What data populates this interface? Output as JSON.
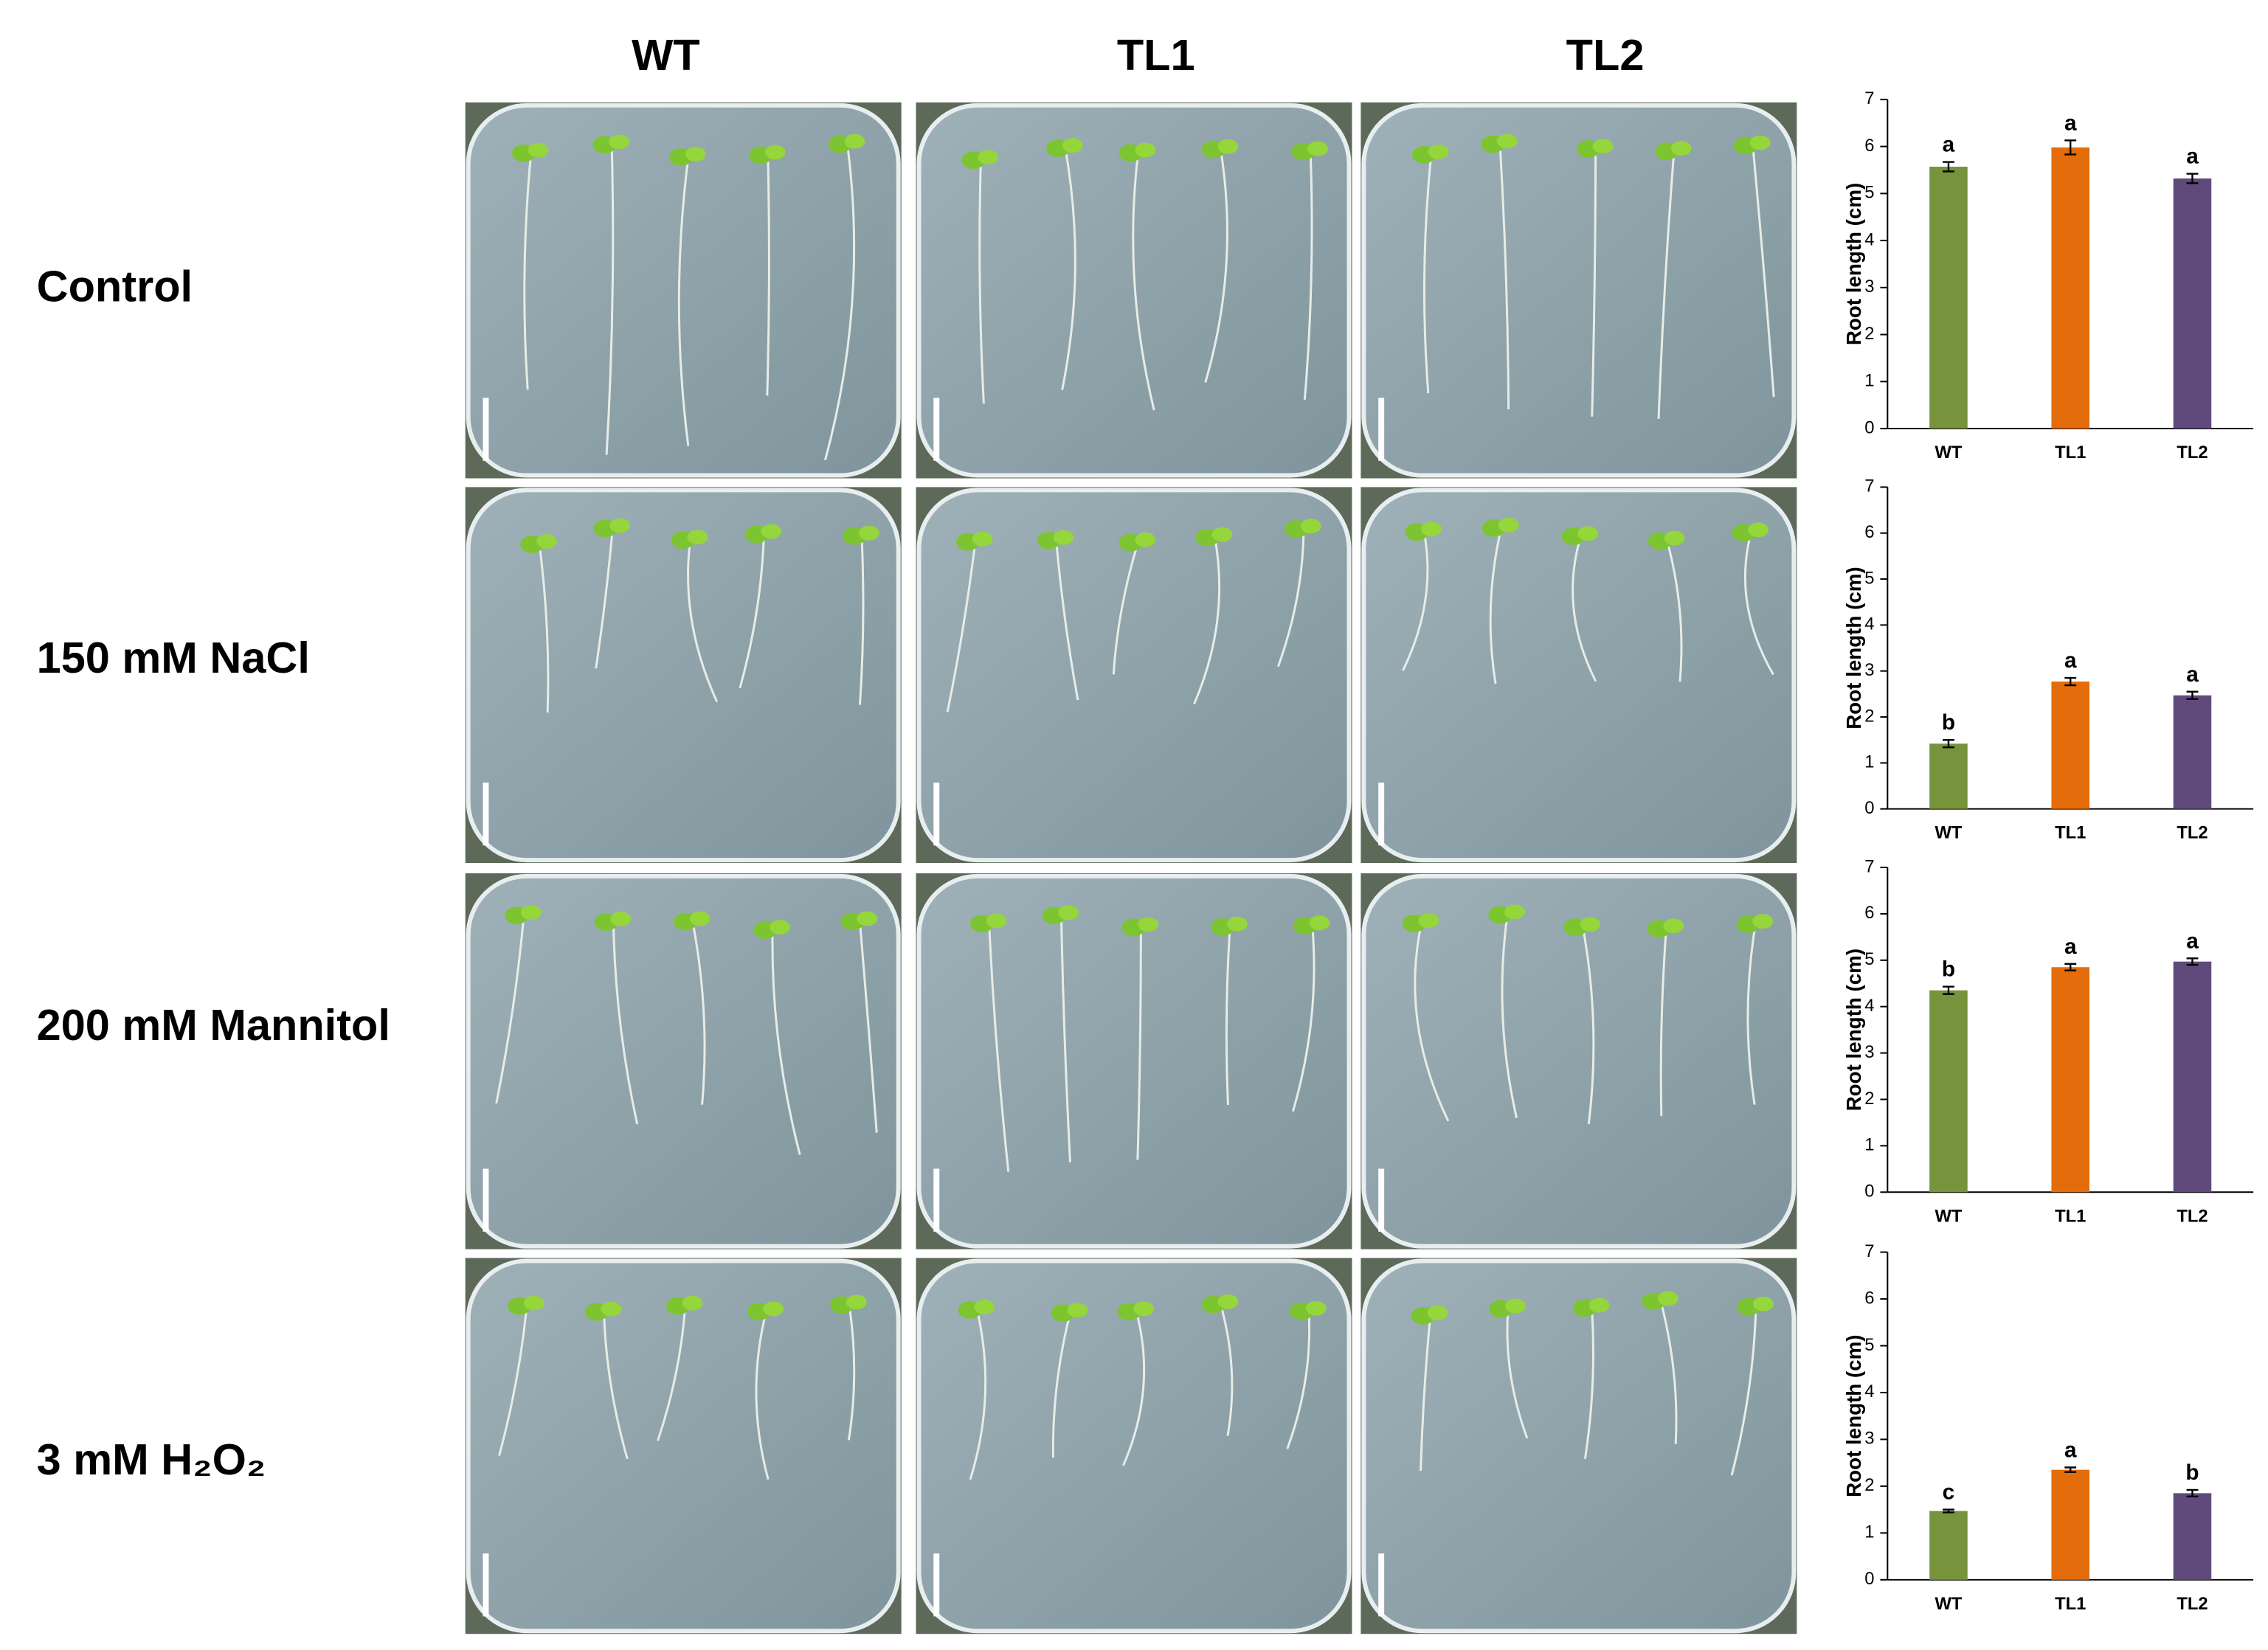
{
  "column_headers": [
    "WT",
    "TL1",
    "TL2"
  ],
  "row_labels": [
    "Control",
    "150 mM NaCl",
    "200 mM Mannitol",
    "3 mM H₂O₂"
  ],
  "chart_data": [
    {
      "type": "bar",
      "ylabel": "Root length (cm)",
      "categories": [
        "WT",
        "TL1",
        "TL2"
      ],
      "values": [
        5.57,
        5.98,
        5.32
      ],
      "errors": [
        0.1,
        0.15,
        0.1
      ],
      "annotations": [
        "a",
        "a",
        "a"
      ],
      "colors": [
        "#77933c",
        "#e46c0a",
        "#604a7b"
      ],
      "ylim": [
        0,
        7
      ],
      "yticks": [
        0,
        1,
        2,
        3,
        4,
        5,
        6,
        7
      ]
    },
    {
      "type": "bar",
      "ylabel": "Root length (cm)",
      "categories": [
        "WT",
        "TL1",
        "TL2"
      ],
      "values": [
        1.42,
        2.77,
        2.47
      ],
      "errors": [
        0.08,
        0.08,
        0.08
      ],
      "annotations": [
        "b",
        "a",
        "a"
      ],
      "colors": [
        "#77933c",
        "#e46c0a",
        "#604a7b"
      ],
      "ylim": [
        0,
        7
      ],
      "yticks": [
        0,
        1,
        2,
        3,
        4,
        5,
        6,
        7
      ]
    },
    {
      "type": "bar",
      "ylabel": "Root length (cm)",
      "categories": [
        "WT",
        "TL1",
        "TL2"
      ],
      "values": [
        4.35,
        4.85,
        4.97
      ],
      "errors": [
        0.08,
        0.07,
        0.07
      ],
      "annotations": [
        "b",
        "a",
        "a"
      ],
      "colors": [
        "#77933c",
        "#e46c0a",
        "#604a7b"
      ],
      "ylim": [
        0,
        7
      ],
      "yticks": [
        0,
        1,
        2,
        3,
        4,
        5,
        6,
        7
      ]
    },
    {
      "type": "bar",
      "ylabel": "Root length (cm)",
      "categories": [
        "WT",
        "TL1",
        "TL2"
      ],
      "values": [
        1.47,
        2.35,
        1.85
      ],
      "errors": [
        0.03,
        0.05,
        0.07
      ],
      "annotations": [
        "c",
        "a",
        "b"
      ],
      "colors": [
        "#77933c",
        "#e46c0a",
        "#604a7b"
      ],
      "ylim": [
        0,
        7
      ],
      "yticks": [
        0,
        1,
        2,
        3,
        4,
        5,
        6,
        7
      ]
    }
  ]
}
